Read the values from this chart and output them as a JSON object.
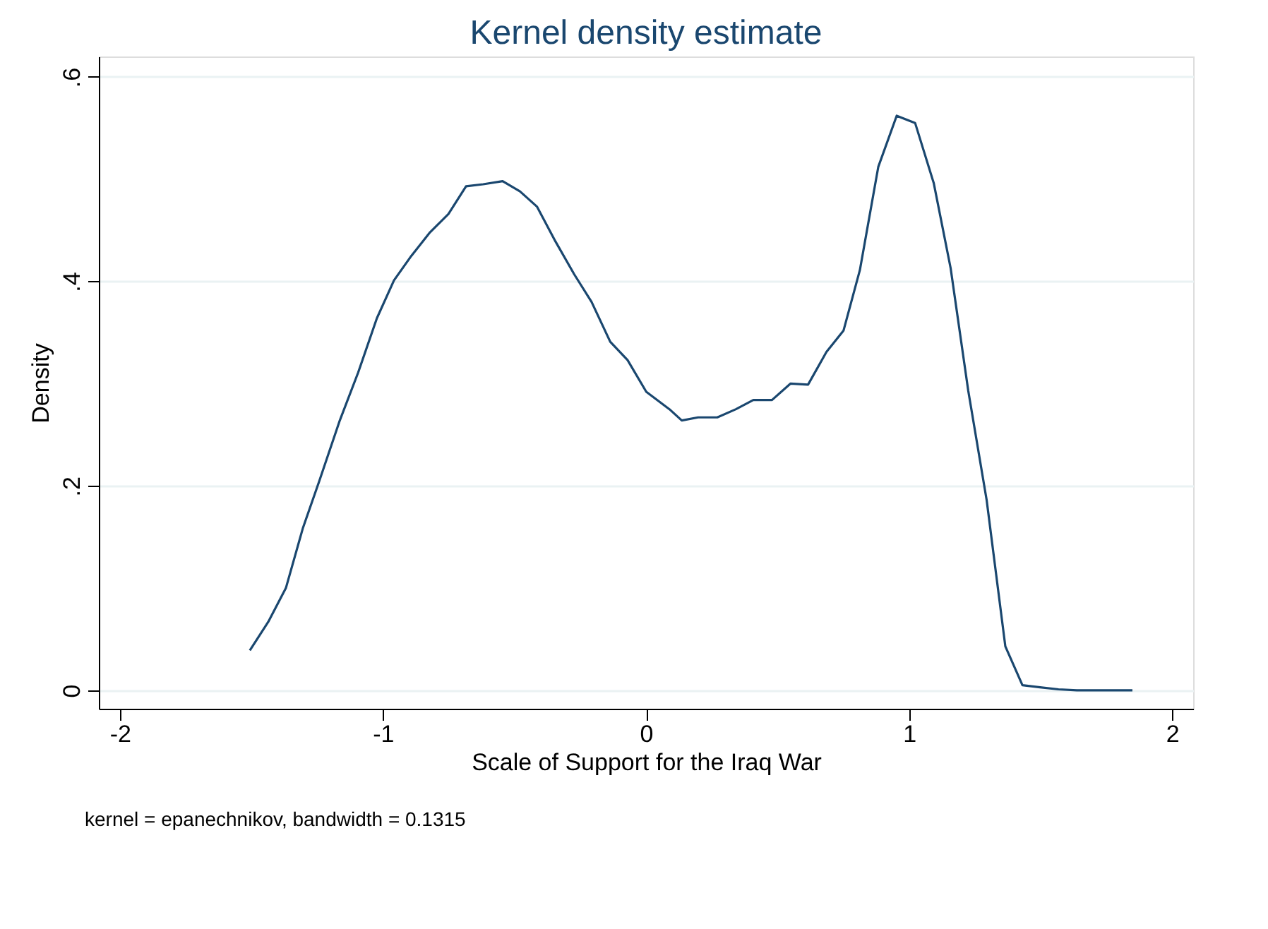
{
  "chart_data": {
    "type": "line",
    "title": "Kernel density estimate",
    "xlabel": "Scale of Support for the Iraq War",
    "ylabel": "Density",
    "annotations": [
      "kernel = epanechnikov, bandwidth = 0.1315"
    ],
    "x": [
      -1.506,
      -1.436,
      -1.369,
      -1.304,
      -1.243,
      -1.164,
      -1.094,
      -1.023,
      -0.958,
      -0.892,
      -0.821,
      -0.751,
      -0.684,
      -0.619,
      -0.545,
      -0.479,
      -0.414,
      -0.344,
      -0.273,
      -0.207,
      -0.136,
      -0.07,
      0.001,
      0.089,
      0.136,
      0.198,
      0.271,
      0.342,
      0.408,
      0.479,
      0.549,
      0.616,
      0.686,
      0.751,
      0.813,
      0.883,
      0.953,
      1.023,
      1.094,
      1.158,
      1.225,
      1.295,
      1.366,
      1.431,
      1.498,
      1.568,
      1.638,
      1.849
    ],
    "series": [
      {
        "color": "#1a476f",
        "values": [
          0.039,
          0.067,
          0.1,
          0.159,
          0.204,
          0.264,
          0.311,
          0.364,
          0.401,
          0.425,
          0.448,
          0.466,
          0.493,
          0.495,
          0.498,
          0.488,
          0.473,
          0.439,
          0.407,
          0.38,
          0.341,
          0.323,
          0.292,
          0.275,
          0.264,
          0.267,
          0.267,
          0.275,
          0.284,
          0.284,
          0.3,
          0.299,
          0.331,
          0.352,
          0.411,
          0.512,
          0.562,
          0.555,
          0.496,
          0.413,
          0.293,
          0.186,
          0.043,
          0.005,
          0.003,
          0.001,
          0.0,
          0.0
        ]
      }
    ],
    "xlim": [
      -2.08,
      2.08
    ],
    "xticks": [
      -2,
      -1,
      0,
      1,
      2
    ],
    "ylim": [
      -0.018,
      0.62
    ],
    "yticks": [
      {
        "value": 0,
        "label": "0"
      },
      {
        "value": 0.2,
        "label": ".2"
      },
      {
        "value": 0.4,
        "label": ".4"
      },
      {
        "value": 0.6,
        "label": ".6"
      }
    ],
    "grid": "y",
    "marker": "none",
    "line_style": "solid"
  }
}
